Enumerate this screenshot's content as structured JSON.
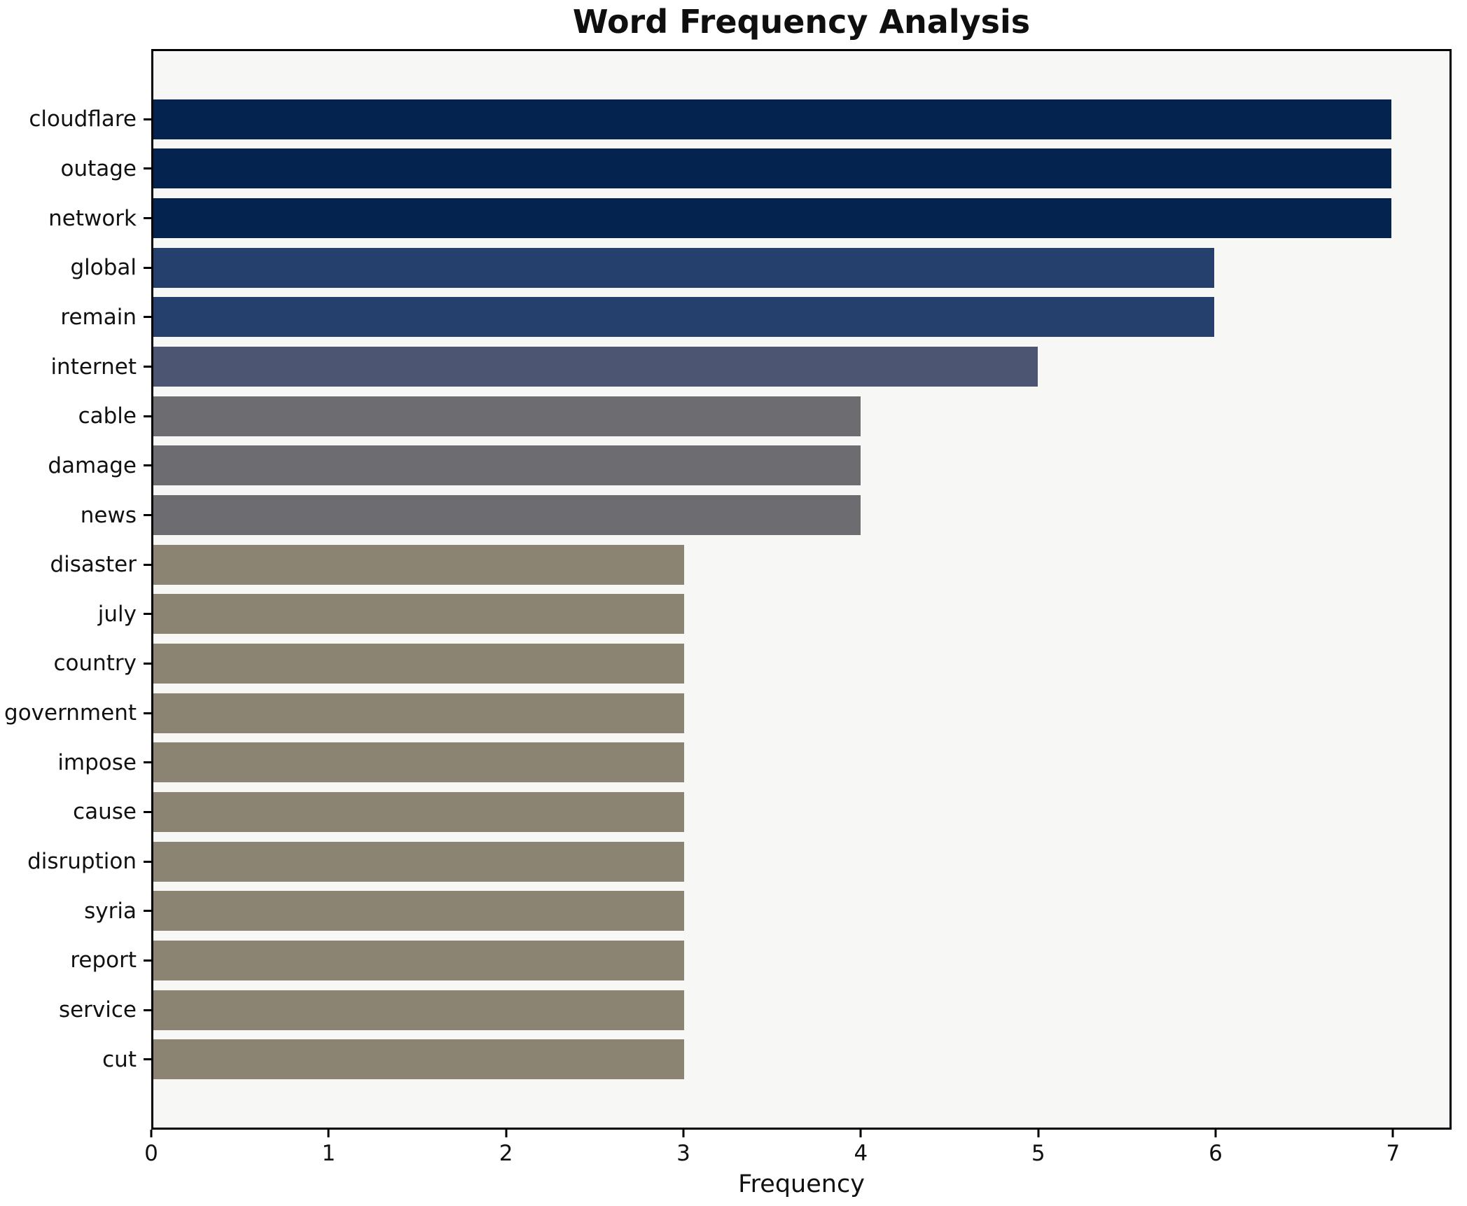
{
  "figure": {
    "background": "#ffffff",
    "plot_background": "#f7f7f5",
    "spine_color": "#000000"
  },
  "chart_data": {
    "type": "bar",
    "orientation": "horizontal",
    "title": "Word Frequency Analysis",
    "xlabel": "Frequency",
    "ylabel": "",
    "categories": [
      "cloudflare",
      "outage",
      "network",
      "global",
      "remain",
      "internet",
      "cable",
      "damage",
      "news",
      "disaster",
      "july",
      "country",
      "government",
      "impose",
      "cause",
      "disruption",
      "syria",
      "report",
      "service",
      "cut"
    ],
    "values": [
      7,
      7,
      7,
      6,
      6,
      5,
      4,
      4,
      4,
      3,
      3,
      3,
      3,
      3,
      3,
      3,
      3,
      3,
      3,
      3
    ],
    "bar_colors": [
      "#04234e",
      "#04234e",
      "#04234e",
      "#26406d",
      "#26406d",
      "#4c5571",
      "#6c6c71",
      "#6c6c71",
      "#6c6c71",
      "#8b8472",
      "#8b8472",
      "#8b8472",
      "#8b8472",
      "#8b8472",
      "#8b8472",
      "#8b8472",
      "#8b8472",
      "#8b8472",
      "#8b8472",
      "#8b8472"
    ],
    "xticks": [
      0,
      1,
      2,
      3,
      4,
      5,
      6,
      7
    ],
    "xlim": [
      0,
      7.33
    ],
    "grid": false,
    "legend": null
  }
}
